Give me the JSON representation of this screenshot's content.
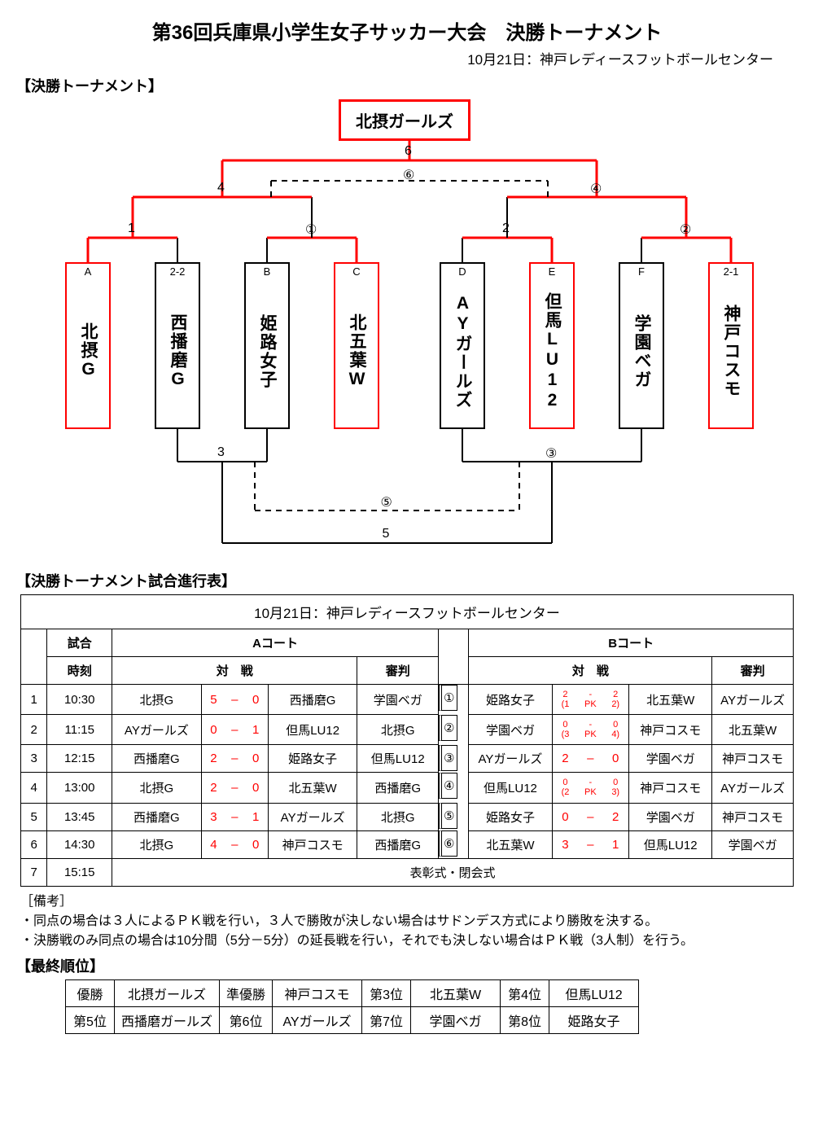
{
  "title": "第36回兵庫県小学生女子サッカー大会　決勝トーナメント",
  "subtitle": "10月21日：神戸レディースフットボールセンター",
  "section_bracket": "【決勝トーナメント】",
  "section_schedule": "【決勝トーナメント試合進行表】",
  "section_notes": "［備考］",
  "section_rank": "【最終順位】",
  "champion": "北摂ガールズ",
  "colors": {
    "winner": "#ff0000",
    "line": "#000000"
  },
  "teams": [
    {
      "slot": "A",
      "name": "北摂G",
      "red": true
    },
    {
      "slot": "2-2",
      "name": "西播磨G",
      "red": false
    },
    {
      "slot": "B",
      "name": "姫路女子",
      "red": false
    },
    {
      "slot": "C",
      "name": "北五葉W",
      "red": true
    },
    {
      "slot": "D",
      "name": "AYガールズ",
      "red": false
    },
    {
      "slot": "E",
      "name": "但馬LU12",
      "red": true
    },
    {
      "slot": "F",
      "name": "学園ベガ",
      "red": false
    },
    {
      "slot": "2-1",
      "name": "神戸コスモ",
      "red": true
    }
  ],
  "bracket_labels": {
    "m1": "1",
    "m1c": "①",
    "m2": "2",
    "m2c": "②",
    "sf_l": "4",
    "sf_r": "④",
    "final": "6",
    "final_c": "⑥",
    "l3": "3",
    "l3c": "③",
    "l5": "5",
    "l5c": "⑤"
  },
  "schedule_header": "10月21日：神戸レディースフットボールセンター",
  "sch_cols": {
    "match_time_1": "試合",
    "match_time_2": "時刻",
    "courtA": "Aコート",
    "courtB": "Bコート",
    "taisen": "対　戦",
    "shinpan": "審判"
  },
  "schedule": [
    {
      "no": "1",
      "time": "10:30",
      "a_t1": "北摂G",
      "a_s1": "5",
      "a_s2": "0",
      "a_t2": "西播磨G",
      "a_ref": "学園ベガ",
      "bno": "①",
      "b_t1": "姫路女子",
      "b_s1": "2",
      "b_pk1": "(1",
      "b_pk": "PK",
      "b_pk2": "2)",
      "b_s2": "2",
      "b_t2": "北五葉W",
      "b_ref": "AYガールズ",
      "b_ispk": true
    },
    {
      "no": "2",
      "time": "11:15",
      "a_t1": "AYガールズ",
      "a_s1": "0",
      "a_s2": "1",
      "a_t2": "但馬LU12",
      "a_ref": "北摂G",
      "bno": "②",
      "b_t1": "学園ベガ",
      "b_s1": "0",
      "b_pk1": "(3",
      "b_pk": "PK",
      "b_pk2": "4)",
      "b_s2": "0",
      "b_t2": "神戸コスモ",
      "b_ref": "北五葉W",
      "b_ispk": true
    },
    {
      "no": "3",
      "time": "12:15",
      "a_t1": "西播磨G",
      "a_s1": "2",
      "a_s2": "0",
      "a_t2": "姫路女子",
      "a_ref": "但馬LU12",
      "bno": "③",
      "b_t1": "AYガールズ",
      "b_s1": "2",
      "b_s2": "0",
      "b_t2": "学園ベガ",
      "b_ref": "神戸コスモ",
      "b_ispk": false
    },
    {
      "no": "4",
      "time": "13:00",
      "a_t1": "北摂G",
      "a_s1": "2",
      "a_s2": "0",
      "a_t2": "北五葉W",
      "a_ref": "西播磨G",
      "bno": "④",
      "b_t1": "但馬LU12",
      "b_s1": "0",
      "b_pk1": "(2",
      "b_pk": "PK",
      "b_pk2": "3)",
      "b_s2": "0",
      "b_t2": "神戸コスモ",
      "b_ref": "AYガールズ",
      "b_ispk": true
    },
    {
      "no": "5",
      "time": "13:45",
      "a_t1": "西播磨G",
      "a_s1": "3",
      "a_s2": "1",
      "a_t2": "AYガールズ",
      "a_ref": "北摂G",
      "bno": "⑤",
      "b_t1": "姫路女子",
      "b_s1": "0",
      "b_s2": "2",
      "b_t2": "学園ベガ",
      "b_ref": "神戸コスモ",
      "b_ispk": false
    },
    {
      "no": "6",
      "time": "14:30",
      "a_t1": "北摂G",
      "a_s1": "4",
      "a_s2": "0",
      "a_t2": "神戸コスモ",
      "a_ref": "西播磨G",
      "bno": "⑥",
      "b_t1": "北五葉W",
      "b_s1": "3",
      "b_s2": "1",
      "b_t2": "但馬LU12",
      "b_ref": "学園ベガ",
      "b_ispk": false
    }
  ],
  "schedule_last": {
    "no": "7",
    "time": "15:15",
    "text": "表彰式・閉会式"
  },
  "notes": [
    "・同点の場合は３人によるＰＫ戦を行い，３人で勝敗が決しない場合はサドンデス方式により勝敗を決する。",
    "・決勝戦のみ同点の場合は10分間（5分－5分）の延長戦を行い，それでも決しない場合はＰＫ戦（3人制）を行う。"
  ],
  "rank": [
    [
      "優勝",
      "北摂ガールズ",
      "準優勝",
      "神戸コスモ",
      "第3位",
      "北五葉W",
      "第4位",
      "但馬LU12"
    ],
    [
      "第5位",
      "西播磨ガールズ",
      "第6位",
      "AYガールズ",
      "第7位",
      "学園ベガ",
      "第8位",
      "姫路女子"
    ]
  ]
}
